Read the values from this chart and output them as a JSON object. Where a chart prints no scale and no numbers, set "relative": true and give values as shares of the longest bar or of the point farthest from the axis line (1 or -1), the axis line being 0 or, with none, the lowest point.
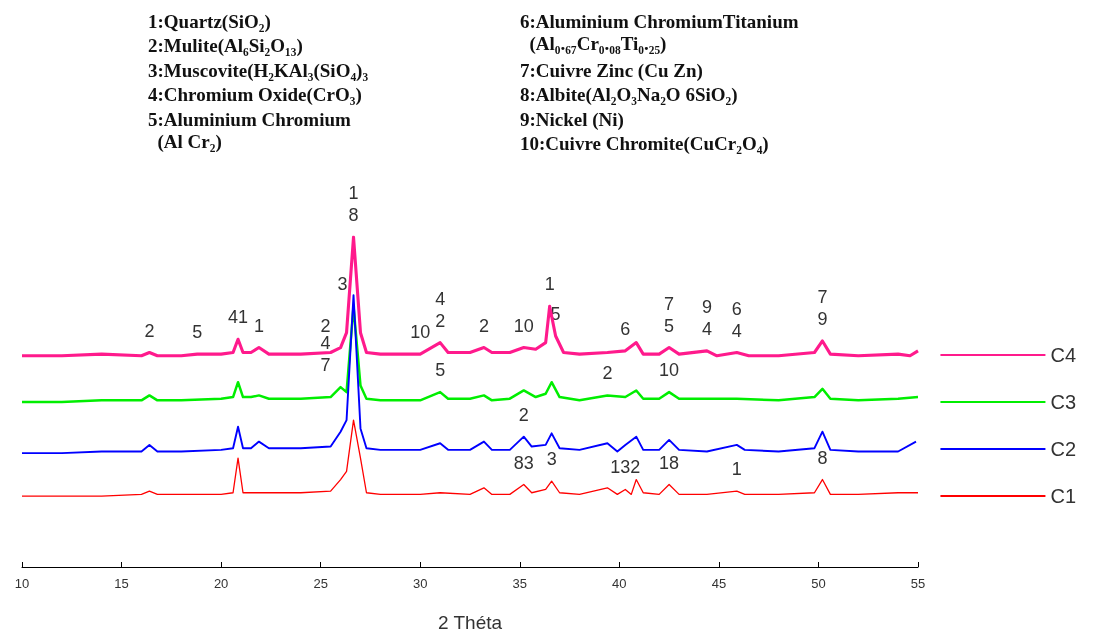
{
  "chart_data": {
    "type": "line",
    "relative": true,
    "xlabel": "2 Théta",
    "xlim": [
      10,
      55
    ],
    "xticks": [
      10,
      15,
      20,
      25,
      30,
      35,
      40,
      45,
      50,
      55
    ],
    "grid": false,
    "legend": "right",
    "marker": "none",
    "line_style": "solid",
    "series": [
      {
        "name": "C4",
        "color": "#ff1a8c",
        "x": [
          10,
          12,
          14,
          16,
          16.4,
          16.8,
          18,
          18.8,
          20,
          20.6,
          20.85,
          21.1,
          21.5,
          21.9,
          22.4,
          24,
          25.5,
          26.0,
          26.3,
          26.65,
          27.0,
          27.3,
          28,
          30,
          31,
          31.4,
          32.5,
          33.2,
          33.6,
          34.5,
          35.2,
          35.8,
          36.3,
          36.5,
          36.8,
          37.2,
          38,
          39.4,
          40.3,
          40.85,
          41.2,
          42,
          42.5,
          43,
          44.4,
          44.9,
          45.9,
          46.5,
          48,
          49.8,
          50.2,
          50.6,
          52,
          54,
          54.6,
          55
        ],
        "values": [
          0.64,
          0.64,
          0.645,
          0.64,
          0.65,
          0.64,
          0.64,
          0.645,
          0.645,
          0.65,
          0.69,
          0.65,
          0.65,
          0.665,
          0.645,
          0.645,
          0.65,
          0.665,
          0.71,
          1.0,
          0.71,
          0.65,
          0.645,
          0.645,
          0.68,
          0.65,
          0.65,
          0.665,
          0.65,
          0.65,
          0.665,
          0.66,
          0.68,
          0.79,
          0.7,
          0.65,
          0.645,
          0.65,
          0.655,
          0.68,
          0.645,
          0.645,
          0.665,
          0.645,
          0.655,
          0.64,
          0.65,
          0.64,
          0.64,
          0.65,
          0.685,
          0.645,
          0.64,
          0.645,
          0.64,
          0.655
        ]
      },
      {
        "name": "C3",
        "color": "#00ee00",
        "x": [
          10,
          12,
          14,
          16,
          16.4,
          16.8,
          18,
          20,
          20.6,
          20.85,
          21.1,
          21.5,
          21.9,
          22.4,
          24,
          25.5,
          26.0,
          26.3,
          26.65,
          27.0,
          27.3,
          28,
          30,
          31,
          31.4,
          32.5,
          33.2,
          33.6,
          34.5,
          35.2,
          35.8,
          36.3,
          36.6,
          37.0,
          38,
          39.4,
          40.3,
          40.85,
          41.2,
          42,
          42.5,
          43,
          44.4,
          45.9,
          48,
          49.8,
          50.2,
          50.6,
          52,
          54,
          55
        ],
        "values": [
          0.5,
          0.5,
          0.505,
          0.505,
          0.52,
          0.505,
          0.505,
          0.51,
          0.515,
          0.56,
          0.515,
          0.515,
          0.52,
          0.51,
          0.51,
          0.515,
          0.545,
          0.53,
          0.79,
          0.55,
          0.51,
          0.505,
          0.505,
          0.53,
          0.51,
          0.51,
          0.52,
          0.505,
          0.51,
          0.535,
          0.515,
          0.525,
          0.56,
          0.515,
          0.505,
          0.52,
          0.515,
          0.535,
          0.51,
          0.51,
          0.53,
          0.51,
          0.51,
          0.51,
          0.505,
          0.515,
          0.54,
          0.51,
          0.505,
          0.51,
          0.515
        ]
      },
      {
        "name": "C2",
        "color": "#0000ff",
        "x": [
          10,
          12,
          14,
          16,
          16.4,
          16.8,
          18,
          20,
          20.6,
          20.85,
          21.1,
          21.5,
          21.9,
          22.4,
          24,
          25.5,
          26.0,
          26.3,
          26.65,
          27.0,
          27.3,
          28,
          30,
          31,
          31.4,
          32.5,
          33.2,
          33.6,
          34.5,
          35.2,
          35.6,
          36.3,
          36.6,
          37.0,
          38,
          39.4,
          39.9,
          40.3,
          40.85,
          41.2,
          42,
          42.5,
          43,
          44.4,
          45.9,
          46.3,
          48,
          49.8,
          50.2,
          50.6,
          52,
          54,
          54.9
        ],
        "values": [
          0.345,
          0.345,
          0.35,
          0.35,
          0.37,
          0.35,
          0.35,
          0.355,
          0.36,
          0.425,
          0.36,
          0.36,
          0.38,
          0.36,
          0.36,
          0.365,
          0.41,
          0.445,
          0.824,
          0.42,
          0.36,
          0.355,
          0.355,
          0.375,
          0.355,
          0.355,
          0.38,
          0.355,
          0.355,
          0.395,
          0.365,
          0.37,
          0.405,
          0.36,
          0.355,
          0.375,
          0.35,
          0.37,
          0.395,
          0.355,
          0.355,
          0.385,
          0.355,
          0.35,
          0.37,
          0.355,
          0.35,
          0.36,
          0.41,
          0.355,
          0.35,
          0.35,
          0.38
        ]
      },
      {
        "name": "C1",
        "color": "#ff0000",
        "x": [
          10,
          12,
          14,
          16,
          16.4,
          16.8,
          18,
          20,
          20.6,
          20.85,
          21.1,
          21.5,
          22,
          24,
          25.5,
          26.0,
          26.3,
          26.65,
          27.0,
          27.3,
          28,
          30,
          31,
          32.5,
          33.2,
          33.6,
          34.5,
          35.2,
          35.6,
          36.3,
          36.6,
          37.0,
          38,
          39.4,
          39.9,
          40.3,
          40.6,
          40.85,
          41.2,
          42,
          42.5,
          43,
          44.4,
          45.9,
          46.3,
          48,
          49.8,
          50.2,
          50.6,
          52,
          54,
          55
        ],
        "values": [
          0.215,
          0.215,
          0.215,
          0.22,
          0.23,
          0.22,
          0.22,
          0.22,
          0.225,
          0.33,
          0.225,
          0.225,
          0.225,
          0.225,
          0.23,
          0.265,
          0.29,
          0.445,
          0.33,
          0.225,
          0.22,
          0.22,
          0.225,
          0.22,
          0.24,
          0.22,
          0.22,
          0.25,
          0.225,
          0.235,
          0.26,
          0.225,
          0.22,
          0.24,
          0.22,
          0.235,
          0.22,
          0.265,
          0.225,
          0.22,
          0.25,
          0.22,
          0.22,
          0.23,
          0.22,
          0.22,
          0.225,
          0.265,
          0.22,
          0.22,
          0.225,
          0.225
        ]
      }
    ],
    "annotations": [
      "1:Quartz(SiO₂)",
      "2:Mulite(Al₆Si₂O₁₃)",
      "3:Muscovite(H₂KAl₃(SiO₄)₃",
      "4:Chromium Oxide(CrO₃)",
      "5:Aluminium Chromium\n  (Al Cr₂)",
      "6:Aluminium ChromiumTitanium\n  (Al₀.₆₇Cr₀.₀₈Ti₀.₂₅)",
      "7:Cuivre Zinc (Cu Zn)",
      "8:Albite(Al₂O₃Na₂O 6SiO₂)",
      "9:Nickel (Ni)",
      "10:Cuivre Chromite(CuCr₂O₄)",
      {
        "text": "2",
        "x": 16.4,
        "y": 0.65
      },
      {
        "text": "5",
        "x": 18.8,
        "y": 0.645
      },
      {
        "text": "41",
        "x": 20.85,
        "y": 0.69
      },
      {
        "text": "1",
        "x": 21.9,
        "y": 0.665
      },
      {
        "text": "2",
        "x": 26.0,
        "y": 0.665
      },
      {
        "text": "3",
        "x": 26.65,
        "y": 0.79
      },
      {
        "text": "8",
        "x": 26.65,
        "y": 1.0
      },
      {
        "text": "1",
        "x": 26.65,
        "y": 1.0
      },
      {
        "text": "10",
        "x": 30,
        "y": 0.645
      },
      {
        "text": "2",
        "x": 31,
        "y": 0.68
      },
      {
        "text": "4",
        "x": 31,
        "y": 0.68
      },
      {
        "text": "2",
        "x": 33.2,
        "y": 0.665
      },
      {
        "text": "10",
        "x": 35.2,
        "y": 0.665
      },
      {
        "text": "1",
        "x": 36.5,
        "y": 0.79
      },
      {
        "text": "5",
        "x": 36.8,
        "y": 0.7
      },
      {
        "text": "6",
        "x": 40.3,
        "y": 0.655
      },
      {
        "text": "5",
        "x": 42.5,
        "y": 0.665
      },
      {
        "text": "7",
        "x": 42.5,
        "y": 0.665
      },
      {
        "text": "4",
        "x": 44.4,
        "y": 0.655
      },
      {
        "text": "9",
        "x": 44.4,
        "y": 0.655
      },
      {
        "text": "4",
        "x": 45.9,
        "y": 0.65
      },
      {
        "text": "6",
        "x": 45.9,
        "y": 0.65
      },
      {
        "text": "9",
        "x": 50.2,
        "y": 0.685
      },
      {
        "text": "7",
        "x": 50.2,
        "y": 0.685
      },
      {
        "text": "7",
        "x": 26.0,
        "y": 0.545
      },
      {
        "text": "4",
        "x": 26.0,
        "y": 0.545
      },
      {
        "text": "5",
        "x": 31,
        "y": 0.53
      },
      {
        "text": "2",
        "x": 39.4,
        "y": 0.52
      },
      {
        "text": "10",
        "x": 42.5,
        "y": 0.53
      },
      {
        "text": "2",
        "x": 35.2,
        "y": 0.395
      },
      {
        "text": "83",
        "x": 35.2,
        "y": 0.25
      },
      {
        "text": "3",
        "x": 36.6,
        "y": 0.26
      },
      {
        "text": "132",
        "x": 40.3,
        "y": 0.235
      },
      {
        "text": "18",
        "x": 42.5,
        "y": 0.25
      },
      {
        "text": "1",
        "x": 45.9,
        "y": 0.23
      },
      {
        "text": "8",
        "x": 50.2,
        "y": 0.265
      }
    ]
  }
}
